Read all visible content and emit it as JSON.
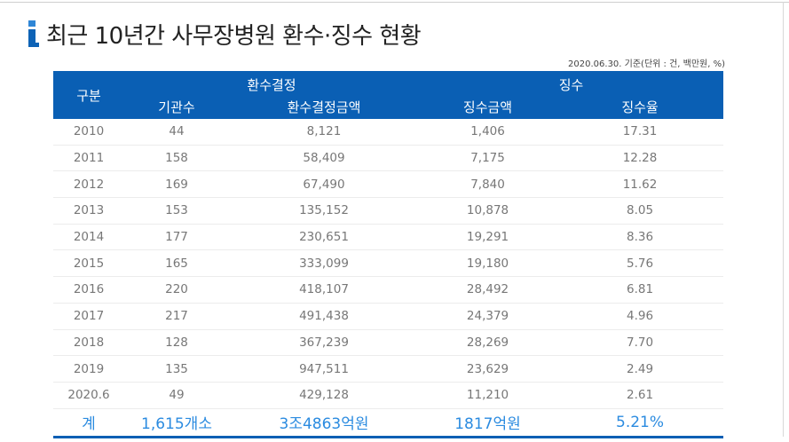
{
  "title": "최근 10년간 사무장병원 환수·징수 현황",
  "note": "2020.06.30. 기준(단위 : 건, 백만원, %)",
  "table": {
    "header_category": "구분",
    "group_refund": "환수결정",
    "group_collect": "징수",
    "columns": [
      "기관수",
      "환수결정금액",
      "징수금액",
      "징수율"
    ],
    "rows": [
      [
        "2010",
        "44",
        "8,121",
        "1,406",
        "17.31"
      ],
      [
        "2011",
        "158",
        "58,409",
        "7,175",
        "12.28"
      ],
      [
        "2012",
        "169",
        "67,490",
        "7,840",
        "11.62"
      ],
      [
        "2013",
        "153",
        "135,152",
        "10,878",
        "8.05"
      ],
      [
        "2014",
        "177",
        "230,651",
        "19,291",
        "8.36"
      ],
      [
        "2015",
        "165",
        "333,099",
        "19,180",
        "5.76"
      ],
      [
        "2016",
        "220",
        "418,107",
        "28,492",
        "6.81"
      ],
      [
        "2017",
        "217",
        "491,438",
        "24,379",
        "4.96"
      ],
      [
        "2018",
        "128",
        "367,239",
        "28,269",
        "7.70"
      ],
      [
        "2019",
        "135",
        "947,511",
        "23,629",
        "2.49"
      ],
      [
        "2020.6",
        "49",
        "429,128",
        "11,210",
        "2.61"
      ]
    ],
    "total": [
      "계",
      "1,615개소",
      "3조4863억원",
      "1817억원",
      "5.21%"
    ]
  },
  "colors": {
    "header_bg": "#0a5fb4",
    "total_text": "#2b8be0",
    "logo_blue": "#0e63b6"
  },
  "icons": {
    "logo": "i-logo-icon"
  }
}
